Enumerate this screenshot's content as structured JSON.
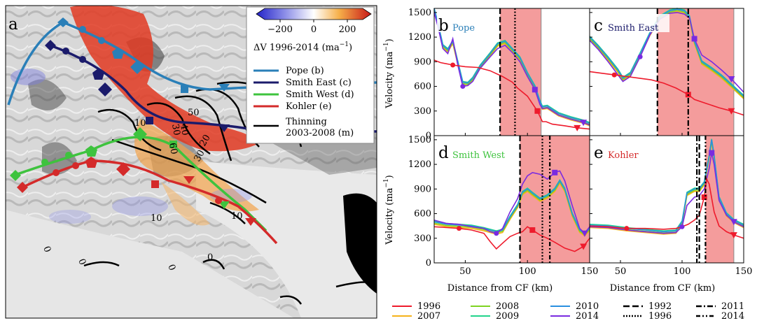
{
  "map": {
    "panel_letter": "a",
    "colorbar": {
      "ticks": [
        "−200",
        "0",
        "200"
      ],
      "label": "ΔV 1996-2014 (ma",
      "label_sup": "−1",
      "label_end": ")",
      "cmap": [
        "#2323c8",
        "#6f73e0",
        "#ffffff",
        "#f5b54e",
        "#e84226",
        "#c80f0f"
      ]
    },
    "legend": [
      {
        "label": "Pope (b)",
        "color": "#2a7fb8"
      },
      {
        "label": "Smith East (c)",
        "color": "#1b1b6b"
      },
      {
        "label": "Smith West (d)",
        "color": "#3ec33e"
      },
      {
        "label": "Kohler (e)",
        "color": "#d42a2a"
      },
      {
        "label": "Thinning",
        "color": "#000000"
      },
      {
        "label": "2003-2008 (m)",
        "color": "#000000"
      }
    ],
    "contour_labels": [
      "10",
      "30",
      "40",
      "50",
      "60",
      "20",
      "30",
      "10",
      "10",
      "0",
      "0",
      "0",
      "0"
    ]
  },
  "chart_data": [
    {
      "panel": "b",
      "title": "Pope",
      "title_color": "#2a7fb8",
      "type": "line",
      "xlabel": "",
      "ylabel": "Velocity (ma",
      "ylabel_sup": "−1",
      "ylabel_end": ")",
      "xlim": [
        25,
        150
      ],
      "ylim": [
        0,
        1550
      ],
      "yticks": [
        "0",
        "300",
        "600",
        "900",
        "1200",
        "1500"
      ],
      "shade": [
        78,
        111
      ],
      "vlines": [
        {
          "x": 78,
          "style": "1992"
        },
        {
          "x": 90,
          "style": "1996"
        }
      ],
      "series": [
        {
          "name": "1996",
          "x": [
            25,
            30,
            40,
            50,
            60,
            70,
            80,
            88,
            92,
            100,
            108,
            112,
            115,
            120,
            130,
            140,
            150
          ],
          "y": [
            920,
            890,
            860,
            840,
            830,
            790,
            720,
            650,
            580,
            480,
            300,
            170,
            170,
            140,
            120,
            95,
            80
          ]
        },
        {
          "name": "2010",
          "x": [
            25,
            28,
            32,
            36,
            40,
            44,
            48,
            52,
            56,
            62,
            70,
            76,
            82,
            88,
            94,
            100,
            106,
            110,
            112,
            116,
            125,
            135,
            145,
            150
          ],
          "y": [
            1550,
            1370,
            1100,
            1050,
            1150,
            900,
            650,
            640,
            700,
            850,
            1000,
            1120,
            1150,
            1050,
            950,
            760,
            600,
            420,
            350,
            360,
            270,
            220,
            180,
            150
          ]
        },
        {
          "name": "2014",
          "x": [
            25,
            28,
            32,
            36,
            40,
            44,
            48,
            52,
            56,
            62,
            70,
            76,
            82,
            88,
            94,
            100,
            106,
            110,
            112,
            116,
            125,
            135,
            145,
            150
          ],
          "y": [
            1500,
            1330,
            1060,
            1000,
            1180,
            860,
            600,
            610,
            660,
            820,
            960,
            1060,
            1100,
            1010,
            900,
            720,
            560,
            380,
            330,
            340,
            250,
            200,
            160,
            130
          ]
        }
      ]
    },
    {
      "panel": "c",
      "title": "Smith East",
      "title_color": "#1b1b6b",
      "type": "line",
      "xlabel": "",
      "xlim": [
        25,
        150
      ],
      "ylim": [
        0,
        1550
      ],
      "shade": [
        80,
        142
      ],
      "vlines": [
        {
          "x": 80,
          "style": "1992"
        },
        {
          "x": 105,
          "style": "2011"
        }
      ],
      "series": [
        {
          "name": "1996",
          "x": [
            25,
            35,
            45,
            55,
            65,
            75,
            85,
            95,
            105,
            110,
            120,
            130,
            140,
            150
          ],
          "y": [
            780,
            760,
            740,
            720,
            700,
            680,
            640,
            580,
            500,
            440,
            390,
            340,
            300,
            250
          ]
        },
        {
          "name": "2010",
          "x": [
            25,
            32,
            40,
            48,
            52,
            58,
            66,
            74,
            82,
            90,
            96,
            102,
            106,
            110,
            116,
            124,
            132,
            140,
            150
          ],
          "y": [
            1200,
            1090,
            950,
            800,
            700,
            760,
            1000,
            1250,
            1450,
            1520,
            1540,
            1520,
            1450,
            1150,
            900,
            820,
            730,
            620,
            480
          ]
        },
        {
          "name": "2014",
          "x": [
            25,
            32,
            40,
            48,
            52,
            58,
            66,
            74,
            82,
            90,
            96,
            102,
            106,
            110,
            116,
            124,
            132,
            140,
            150
          ],
          "y": [
            1160,
            1050,
            900,
            740,
            660,
            720,
            960,
            1230,
            1420,
            1490,
            1500,
            1480,
            1430,
            1180,
            980,
            900,
            800,
            690,
            530
          ]
        }
      ]
    },
    {
      "panel": "d",
      "title": "Smith West",
      "title_color": "#3ec33e",
      "type": "line",
      "xlabel": "Distance from CF (km)",
      "ylabel": "Velocity (ma",
      "ylabel_sup": "−1",
      "ylabel_end": ")",
      "xlim": [
        25,
        150
      ],
      "ylim": [
        0,
        1550
      ],
      "xticks": [
        "50",
        "100",
        "150"
      ],
      "yticks": [
        "0",
        "300",
        "600",
        "900",
        "1200",
        "1500"
      ],
      "shade": [
        94,
        150
      ],
      "vlines": [
        {
          "x": 94,
          "style": "1992"
        },
        {
          "x": 112,
          "style": "1996"
        },
        {
          "x": 118,
          "style": "2014"
        }
      ],
      "series": [
        {
          "name": "1996",
          "x": [
            25,
            35,
            45,
            55,
            65,
            70,
            75,
            80,
            86,
            92,
            96,
            100,
            104,
            110,
            116,
            122,
            130,
            138,
            145,
            150
          ],
          "y": [
            440,
            430,
            420,
            400,
            360,
            260,
            170,
            240,
            320,
            360,
            380,
            440,
            400,
            340,
            300,
            250,
            180,
            140,
            200,
            300
          ]
        },
        {
          "name": "2010",
          "x": [
            25,
            35,
            45,
            55,
            65,
            70,
            75,
            80,
            86,
            92,
            96,
            100,
            104,
            110,
            116,
            122,
            126,
            130,
            136,
            142,
            146,
            150
          ],
          "y": [
            500,
            470,
            460,
            450,
            420,
            400,
            380,
            400,
            560,
            700,
            860,
            900,
            850,
            780,
            820,
            900,
            1000,
            900,
            600,
            400,
            360,
            420
          ]
        },
        {
          "name": "2014",
          "x": [
            25,
            35,
            45,
            55,
            65,
            70,
            75,
            80,
            86,
            92,
            96,
            100,
            104,
            110,
            116,
            122,
            126,
            130,
            136,
            142,
            146,
            150
          ],
          "y": [
            520,
            480,
            470,
            440,
            420,
            380,
            360,
            420,
            620,
            780,
            960,
            1060,
            1100,
            1080,
            1020,
            1100,
            1120,
            1000,
            700,
            420,
            360,
            440
          ]
        }
      ]
    },
    {
      "panel": "e",
      "title": "Kohler",
      "title_color": "#d42a2a",
      "type": "line",
      "xlabel": "Distance from CF (km)",
      "xlim": [
        25,
        150
      ],
      "ylim": [
        0,
        1550
      ],
      "xticks": [
        "50",
        "100",
        "150"
      ],
      "shade": [
        119,
        142
      ],
      "vlines": [
        {
          "x": 112,
          "style": "2011"
        },
        {
          "x": 114,
          "style": "1992"
        },
        {
          "x": 119,
          "style": "2014"
        }
      ],
      "series": [
        {
          "name": "1996",
          "x": [
            25,
            40,
            55,
            70,
            85,
            95,
            100,
            105,
            110,
            114,
            118,
            120,
            122,
            126,
            130,
            136,
            142,
            150
          ],
          "y": [
            450,
            440,
            420,
            420,
            410,
            420,
            440,
            470,
            520,
            580,
            800,
            1020,
            960,
            620,
            450,
            380,
            340,
            300
          ]
        },
        {
          "name": "2010",
          "x": [
            25,
            40,
            55,
            70,
            85,
            95,
            100,
            104,
            110,
            114,
            118,
            122,
            124,
            126,
            130,
            136,
            142,
            150
          ],
          "y": [
            460,
            450,
            420,
            400,
            380,
            390,
            500,
            850,
            900,
            900,
            980,
            1300,
            1500,
            1300,
            800,
            600,
            520,
            460
          ]
        },
        {
          "name": "2014",
          "x": [
            25,
            40,
            55,
            70,
            85,
            95,
            100,
            104,
            110,
            114,
            118,
            122,
            124,
            126,
            130,
            136,
            142,
            150
          ],
          "y": [
            440,
            430,
            400,
            380,
            360,
            370,
            440,
            700,
            800,
            820,
            900,
            1150,
            1340,
            1200,
            760,
            580,
            500,
            440
          ]
        }
      ]
    }
  ],
  "bottom_legend": [
    {
      "label": "1996",
      "color": "#ee1b2c",
      "dash": ""
    },
    {
      "label": "2007",
      "color": "#f6b21a",
      "dash": ""
    },
    {
      "label": "2008",
      "color": "#7ed321",
      "dash": ""
    },
    {
      "label": "2009",
      "color": "#22d48b",
      "dash": ""
    },
    {
      "label": "2010",
      "color": "#2a8fe0",
      "dash": ""
    },
    {
      "label": "2014",
      "color": "#7a2be0",
      "dash": ""
    },
    {
      "label": "1992",
      "color": "#000000",
      "dash": "9,4"
    },
    {
      "label": "1996",
      "color": "#000000",
      "dash": "2,2"
    },
    {
      "label": "2011",
      "color": "#000000",
      "dash": "8,3,2,3"
    },
    {
      "label": "2014",
      "color": "#000000",
      "dash": "6,3,2,3,2,3"
    }
  ]
}
